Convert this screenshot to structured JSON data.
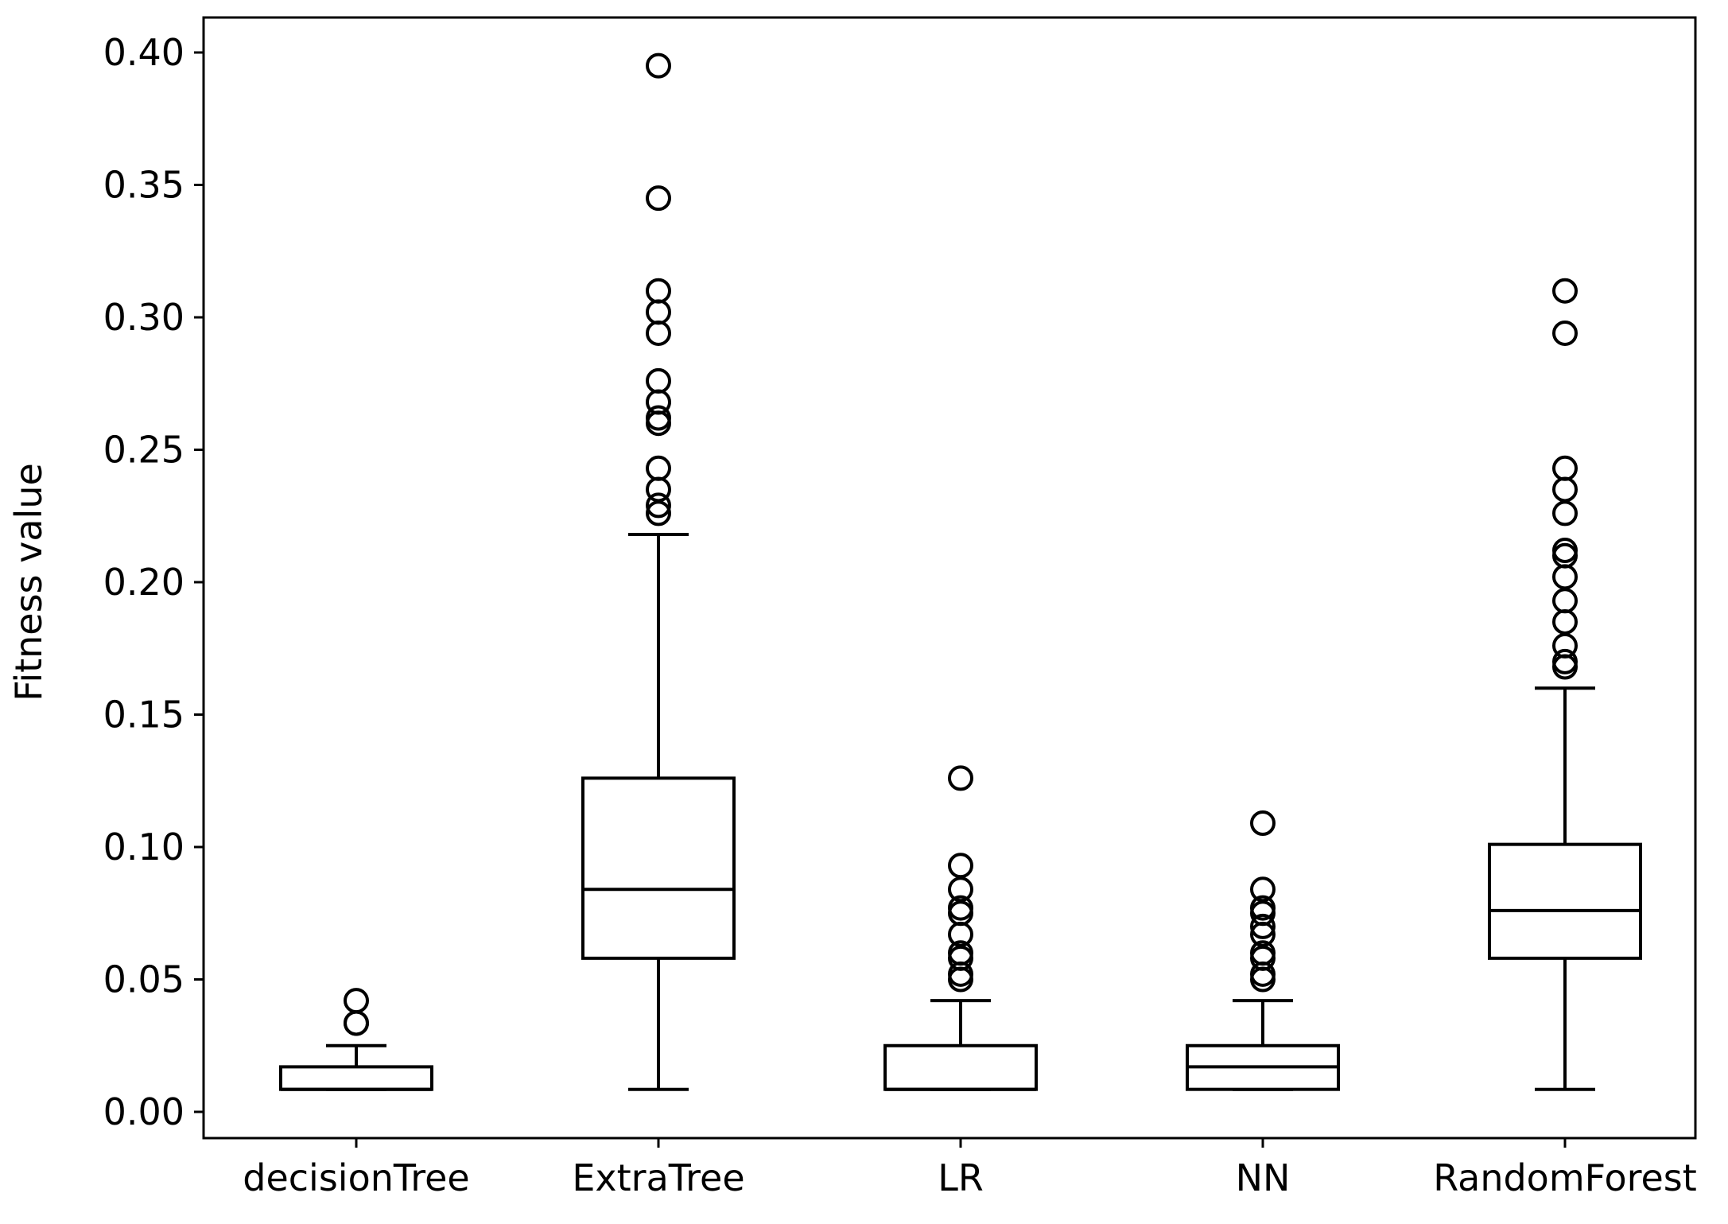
{
  "chart_data": {
    "type": "box",
    "title": "",
    "xlabel": "",
    "ylabel": "Fitness value",
    "ylim": [
      -0.01,
      0.41
    ],
    "yticks": [
      "0.00",
      "0.05",
      "0.10",
      "0.15",
      "0.20",
      "0.25",
      "0.30",
      "0.35",
      "0.40"
    ],
    "grid": false,
    "categories": [
      "decisionTree",
      "ExtraTree",
      "LR",
      "NN",
      "RandomForest"
    ],
    "boxes": [
      {
        "name": "decisionTree",
        "whisker_low": 0.0085,
        "q1": 0.0085,
        "median": 0.0085,
        "q3": 0.017,
        "whisker_high": 0.025,
        "outliers": [
          0.0335,
          0.0335,
          0.042
        ]
      },
      {
        "name": "ExtraTree",
        "whisker_low": 0.0085,
        "q1": 0.058,
        "median": 0.084,
        "q3": 0.126,
        "whisker_high": 0.218,
        "outliers": [
          0.226,
          0.229,
          0.235,
          0.243,
          0.26,
          0.262,
          0.268,
          0.276,
          0.294,
          0.302,
          0.31,
          0.345,
          0.395
        ]
      },
      {
        "name": "LR",
        "whisker_low": 0.0085,
        "q1": 0.0085,
        "median": 0.0085,
        "q3": 0.025,
        "whisker_high": 0.042,
        "outliers": [
          0.05,
          0.052,
          0.058,
          0.06,
          0.067,
          0.075,
          0.077,
          0.084,
          0.093,
          0.126
        ]
      },
      {
        "name": "NN",
        "whisker_low": 0.0085,
        "q1": 0.0085,
        "median": 0.017,
        "q3": 0.025,
        "whisker_high": 0.042,
        "outliers": [
          0.05,
          0.052,
          0.058,
          0.06,
          0.067,
          0.07,
          0.075,
          0.077,
          0.084,
          0.109
        ]
      },
      {
        "name": "RandomForest",
        "whisker_low": 0.0085,
        "q1": 0.058,
        "median": 0.076,
        "q3": 0.101,
        "whisker_high": 0.16,
        "outliers": [
          0.168,
          0.17,
          0.176,
          0.185,
          0.193,
          0.202,
          0.21,
          0.212,
          0.226,
          0.235,
          0.243,
          0.294,
          0.31
        ]
      }
    ]
  }
}
